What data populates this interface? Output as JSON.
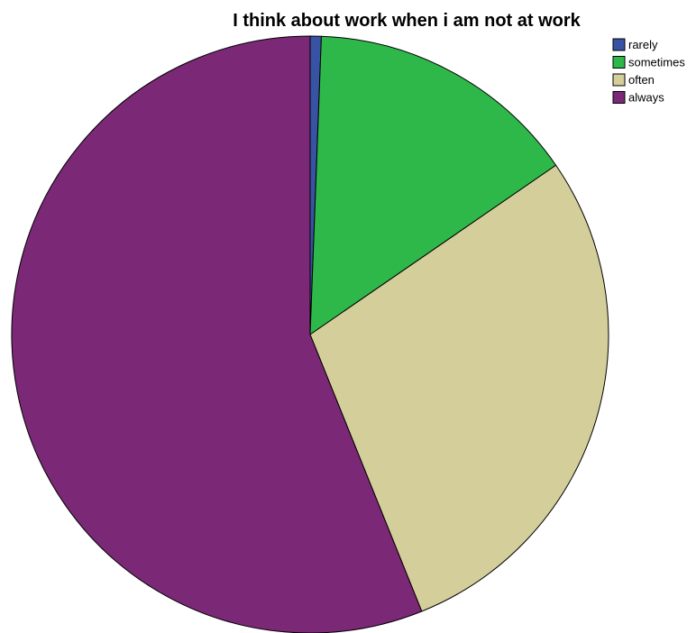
{
  "chart_data": {
    "type": "pie",
    "title": "I think about work when i am not at work",
    "legend_position": "top-right",
    "slices": [
      {
        "label": "rarely",
        "value": 0.6,
        "color": "#3953a4"
      },
      {
        "label": "sometimes",
        "value": 14.8,
        "color": "#2fb84a"
      },
      {
        "label": "often",
        "value": 28.5,
        "color": "#d3ce9a"
      },
      {
        "label": "always",
        "value": 56.1,
        "color": "#7b2876"
      }
    ]
  }
}
